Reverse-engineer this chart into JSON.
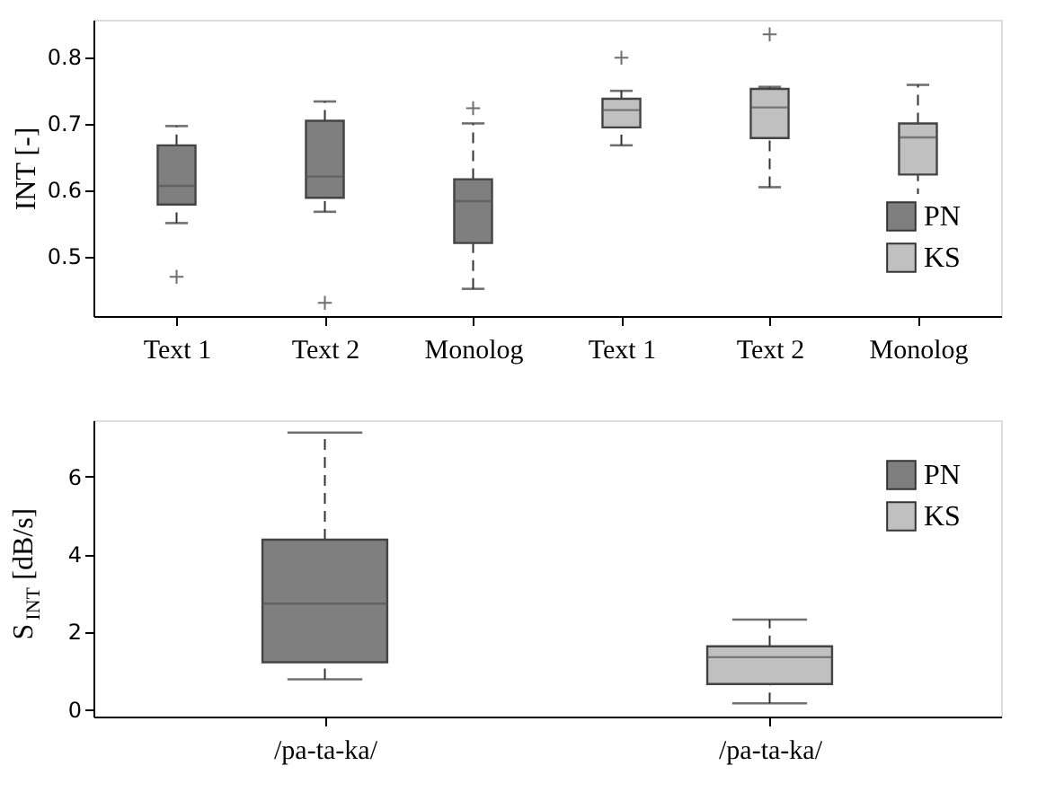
{
  "chart_data": [
    {
      "type": "box",
      "ylabel": "INT [-]",
      "categories": [
        "Text 1",
        "Text 2",
        "Monolog",
        "Text 1",
        "Text 2",
        "Monolog"
      ],
      "ylim": [
        0.41,
        0.856
      ],
      "yticks": [
        0.5,
        0.6,
        0.7,
        0.8
      ],
      "legend": "bottom right",
      "grid": false,
      "line_style": "dashed",
      "series": [
        {
          "name": "PN",
          "color": "#7f7f7f",
          "boxes": [
            {
              "low": 0.55,
              "q1": 0.578,
              "median": 0.606,
              "q3": 0.667,
              "high": 0.696,
              "outliers": [
                0.469
              ]
            },
            {
              "low": 0.567,
              "q1": 0.588,
              "median": 0.62,
              "q3": 0.704,
              "high": 0.733,
              "outliers": [
                0.43
              ]
            },
            {
              "low": 0.451,
              "q1": 0.52,
              "median": 0.583,
              "q3": 0.616,
              "high": 0.7,
              "outliers": [
                0.723
              ]
            },
            null,
            null,
            null
          ]
        },
        {
          "name": "KS",
          "color": "#c0c0c0",
          "boxes": [
            null,
            null,
            null,
            {
              "low": 0.667,
              "q1": 0.694,
              "median": 0.72,
              "q3": 0.737,
              "high": 0.749,
              "outliers": [
                0.799
              ]
            },
            {
              "low": 0.604,
              "q1": 0.678,
              "median": 0.724,
              "q3": 0.752,
              "high": 0.755,
              "outliers": [
                0.834
              ]
            },
            {
              "low": 0.559,
              "q1": 0.623,
              "median": 0.679,
              "q3": 0.7,
              "high": 0.758
            }
          ]
        }
      ]
    },
    {
      "type": "box",
      "ylabel": "S$_{INT}$ [dB/s]",
      "categories": [
        "/pa-ta-ka/",
        "/pa-ta-ka/"
      ],
      "ylim": [
        -0.19,
        7.45
      ],
      "yticks": [
        0,
        2,
        4,
        6
      ],
      "legend": "top right",
      "grid": false,
      "line_style": "dashed",
      "series": [
        {
          "name": "PN",
          "color": "#7f7f7f",
          "boxes": [
            {
              "low": 0.77,
              "q1": 1.21,
              "median": 2.72,
              "q3": 4.37,
              "high": 7.13
            },
            null
          ]
        },
        {
          "name": "KS",
          "color": "#c0c0c0",
          "boxes": [
            null,
            {
              "low": 0.15,
              "q1": 0.65,
              "median": 1.34,
              "q3": 1.62,
              "high": 2.31
            }
          ]
        }
      ]
    }
  ]
}
